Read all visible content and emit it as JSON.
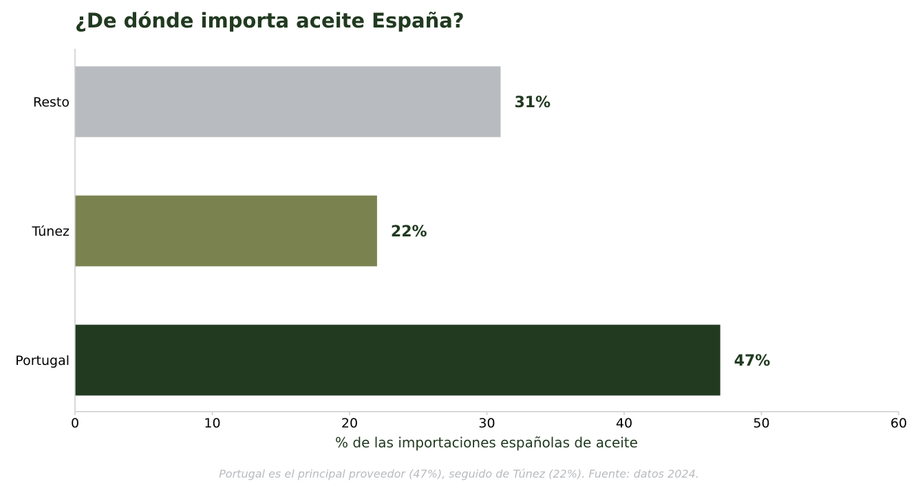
{
  "chart_data": {
    "type": "bar",
    "orientation": "horizontal",
    "title": "¿De dónde importa aceite España?",
    "xlabel": "% de las importaciones españolas de aceite",
    "ylabel": "",
    "categories": [
      "Resto",
      "Túnez",
      "Portugal"
    ],
    "values": [
      31,
      22,
      47
    ],
    "value_labels": [
      "31%",
      "22%",
      "47%"
    ],
    "bar_colors": [
      "#b8bbbf",
      "#7a834f",
      "#213a20"
    ],
    "xlim": [
      0,
      60
    ],
    "xticks": [
      0,
      10,
      20,
      30,
      40,
      50,
      60
    ],
    "xtick_labels": [
      "0",
      "10",
      "20",
      "30",
      "40",
      "50",
      "60"
    ],
    "grid": false,
    "caption": "Portugal es el principal proveedor (47%), seguido de Túnez (22%). Fuente: datos 2024."
  },
  "colors": {
    "title": "#213a20",
    "value_label": "#213a20",
    "axis_title": "#213a20",
    "axis_line": "#cccccc",
    "caption": "#b8bbbf",
    "tick_label": "#000000"
  }
}
